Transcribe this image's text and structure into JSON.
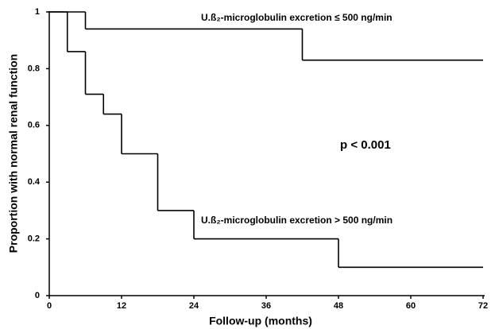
{
  "chart_data": {
    "type": "step",
    "xlabel": "Follow-up (months)",
    "ylabel": "Proportion with normal renal function",
    "annotation": "p < 0.001",
    "xlim": [
      0,
      72
    ],
    "xticks": [
      0,
      12,
      24,
      36,
      48,
      60,
      72
    ],
    "ylim": [
      0,
      1
    ],
    "yticks": [
      0,
      0.2,
      0.4,
      0.6,
      0.8,
      1
    ],
    "color": "#000000",
    "series": [
      {
        "name": "U.ß₂-microglobulin excretion ≤ 500 ng/min",
        "x": [
          0,
          6,
          42,
          72
        ],
        "values": [
          1,
          0.94,
          0.83,
          0.83
        ]
      },
      {
        "name": "U.ß₂-microglobulin excretion > 500 ng/min",
        "x": [
          0,
          3,
          6,
          9,
          12,
          18,
          24,
          48,
          72
        ],
        "values": [
          1,
          0.86,
          0.71,
          0.64,
          0.5,
          0.3,
          0.2,
          0.1,
          0.1
        ]
      }
    ]
  }
}
